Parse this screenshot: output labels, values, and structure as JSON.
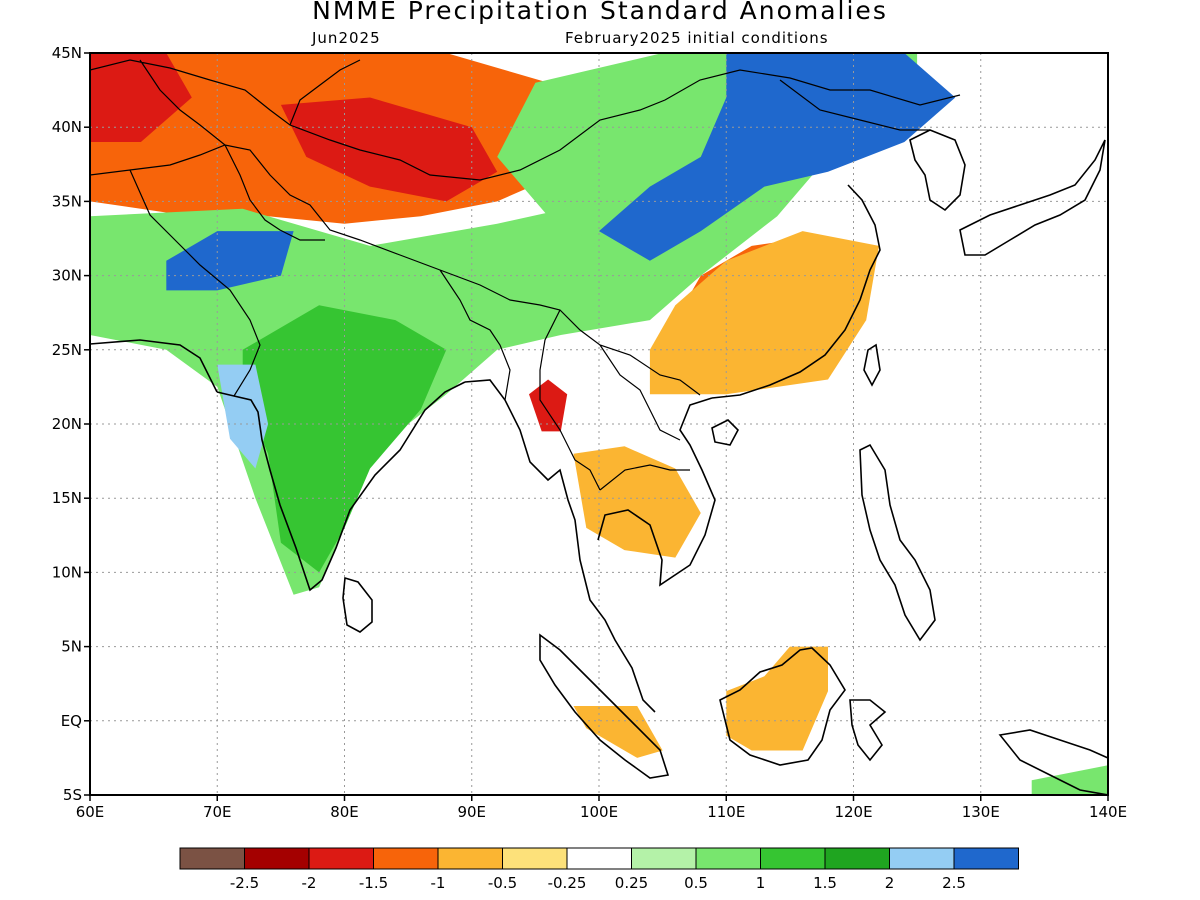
{
  "title": "NMME Precipitation Standard Anomalies",
  "target_month": "Jun2025",
  "initial_conditions": "February2025 initial conditions",
  "map": {
    "lon_range": [
      60,
      140
    ],
    "lat_range": [
      -5,
      45
    ],
    "lon_ticks": [
      "60E",
      "70E",
      "80E",
      "90E",
      "100E",
      "110E",
      "120E",
      "130E",
      "140E"
    ],
    "lat_ticks": [
      "45N",
      "40N",
      "35N",
      "30N",
      "25N",
      "20N",
      "15N",
      "10N",
      "5N",
      "EQ",
      "5S"
    ],
    "grid": "dotted"
  },
  "legend": {
    "colors": [
      "#7b5244",
      "#a40000",
      "#dc1a14",
      "#f7640a",
      "#fbb532",
      "#fde17a",
      "#ffffff",
      "#b4f2a8",
      "#78e66e",
      "#36c532",
      "#1fa520",
      "#94cdf3",
      "#1f68cd"
    ],
    "labels": [
      "-2.5",
      "-2",
      "-1.5",
      "-1",
      "-0.5",
      "-0.25",
      "0.25",
      "0.5",
      "1",
      "1.5",
      "2",
      "2.5"
    ]
  },
  "anomaly_regions": [
    {
      "name": "central-asia-dry",
      "level": -1,
      "color": "#f7640a",
      "pts": [
        [
          60,
          45
        ],
        [
          88,
          45
        ],
        [
          100,
          42
        ],
        [
          100,
          38
        ],
        [
          92,
          35
        ],
        [
          86,
          34
        ],
        [
          80,
          33.5
        ],
        [
          74,
          34
        ],
        [
          68,
          34
        ],
        [
          60,
          35
        ]
      ]
    },
    {
      "name": "tarim-dry-core",
      "level": -1.5,
      "color": "#dc1a14",
      "pts": [
        [
          75,
          41.5
        ],
        [
          82,
          42
        ],
        [
          90,
          40
        ],
        [
          92,
          37
        ],
        [
          88,
          35
        ],
        [
          82,
          36
        ],
        [
          77,
          38
        ]
      ]
    },
    {
      "name": "west-asia-dry-core",
      "level": -1.5,
      "color": "#dc1a14",
      "pts": [
        [
          60,
          45
        ],
        [
          66,
          45
        ],
        [
          68,
          42
        ],
        [
          64,
          39
        ],
        [
          60,
          39
        ]
      ]
    },
    {
      "name": "tibet-wet",
      "level": 1,
      "color": "#78e66e",
      "pts": [
        [
          60,
          34
        ],
        [
          72,
          34.5
        ],
        [
          82,
          32
        ],
        [
          92,
          33.5
        ],
        [
          100,
          35
        ],
        [
          105,
          33
        ],
        [
          108,
          30
        ],
        [
          104,
          27
        ],
        [
          97,
          26
        ],
        [
          92,
          25
        ],
        [
          88,
          22
        ],
        [
          85,
          20
        ],
        [
          82,
          17
        ],
        [
          80,
          13
        ],
        [
          78,
          9
        ],
        [
          76,
          8.5
        ],
        [
          73,
          15
        ],
        [
          71,
          20
        ],
        [
          70,
          22.5
        ],
        [
          66,
          25
        ],
        [
          60,
          26
        ]
      ]
    },
    {
      "name": "india-strong-wet",
      "level": 1.5,
      "color": "#36c532",
      "pts": [
        [
          72,
          25
        ],
        [
          78,
          28
        ],
        [
          84,
          27
        ],
        [
          88,
          25
        ],
        [
          86,
          21
        ],
        [
          82,
          17
        ],
        [
          80,
          13
        ],
        [
          78,
          10
        ],
        [
          75,
          12
        ],
        [
          74,
          18
        ],
        [
          72,
          22
        ]
      ]
    },
    {
      "name": "pakistan-very-wet",
      "level": 2.5,
      "color": "#1f68cd",
      "pts": [
        [
          66,
          31
        ],
        [
          70,
          33
        ],
        [
          76,
          33
        ],
        [
          75,
          30
        ],
        [
          70,
          29
        ],
        [
          66,
          29
        ]
      ]
    },
    {
      "name": "gujarat-very-wet",
      "level": 2,
      "color": "#94cdf3",
      "pts": [
        [
          70,
          24
        ],
        [
          73,
          24
        ],
        [
          74,
          20
        ],
        [
          73,
          17
        ],
        [
          71,
          19
        ]
      ]
    },
    {
      "name": "central-china-wet",
      "level": 1,
      "color": "#78e66e",
      "pts": [
        [
          95,
          43
        ],
        [
          105,
          45
        ],
        [
          125,
          45
        ],
        [
          125,
          40
        ],
        [
          118,
          38
        ],
        [
          114,
          34
        ],
        [
          108,
          30
        ],
        [
          102,
          31
        ],
        [
          96,
          34
        ],
        [
          92,
          38
        ]
      ]
    },
    {
      "name": "north-china-very-wet",
      "level": 2.5,
      "color": "#1f68cd",
      "pts": [
        [
          110,
          45
        ],
        [
          124,
          45
        ],
        [
          128,
          42
        ],
        [
          124,
          39
        ],
        [
          118,
          37
        ],
        [
          113,
          36
        ],
        [
          108,
          33
        ],
        [
          104,
          31
        ],
        [
          100,
          33
        ],
        [
          104,
          36
        ],
        [
          108,
          38
        ],
        [
          110,
          42
        ]
      ]
    },
    {
      "name": "east-china-dry",
      "level": -1,
      "color": "#f7640a",
      "pts": [
        [
          106,
          27
        ],
        [
          108,
          30
        ],
        [
          112,
          32
        ],
        [
          116,
          32.5
        ],
        [
          121,
          31.5
        ],
        [
          120,
          27
        ],
        [
          117,
          24
        ],
        [
          111,
          23
        ],
        [
          106,
          24
        ]
      ]
    },
    {
      "name": "southwest-china-dry",
      "level": -0.5,
      "color": "#fbb532",
      "pts": [
        [
          104,
          25
        ],
        [
          106,
          28
        ],
        [
          110,
          31
        ],
        [
          116,
          33
        ],
        [
          122,
          32
        ],
        [
          121,
          27
        ],
        [
          118,
          23
        ],
        [
          110,
          22
        ],
        [
          104,
          22
        ]
      ]
    },
    {
      "name": "myanmar-dry",
      "level": -1.5,
      "color": "#dc1a14",
      "pts": [
        [
          94.5,
          22
        ],
        [
          96,
          23
        ],
        [
          97.5,
          22
        ],
        [
          97,
          19.5
        ],
        [
          95.5,
          19.5
        ]
      ]
    },
    {
      "name": "indochina-dry",
      "level": -0.5,
      "color": "#fbb532",
      "pts": [
        [
          98,
          18
        ],
        [
          102,
          18.5
        ],
        [
          106,
          17
        ],
        [
          108,
          14
        ],
        [
          106,
          11
        ],
        [
          102,
          11.5
        ],
        [
          99,
          13
        ]
      ]
    },
    {
      "name": "borneo-dry",
      "level": -0.5,
      "color": "#fbb532",
      "pts": [
        [
          110,
          2
        ],
        [
          113,
          3
        ],
        [
          115,
          5
        ],
        [
          118,
          5
        ],
        [
          118,
          2
        ],
        [
          116,
          -2
        ],
        [
          112,
          -2
        ],
        [
          110,
          -1
        ]
      ]
    },
    {
      "name": "sumatra-dry",
      "level": -0.5,
      "color": "#fbb532",
      "pts": [
        [
          98,
          1
        ],
        [
          103,
          1
        ],
        [
          105,
          -2
        ],
        [
          103,
          -2.5
        ],
        [
          99,
          -0.5
        ]
      ]
    },
    {
      "name": "new-guinea-wet",
      "level": 1,
      "color": "#78e66e",
      "pts": [
        [
          134,
          -4
        ],
        [
          140,
          -3
        ],
        [
          140,
          -5
        ],
        [
          134,
          -5
        ]
      ]
    }
  ]
}
